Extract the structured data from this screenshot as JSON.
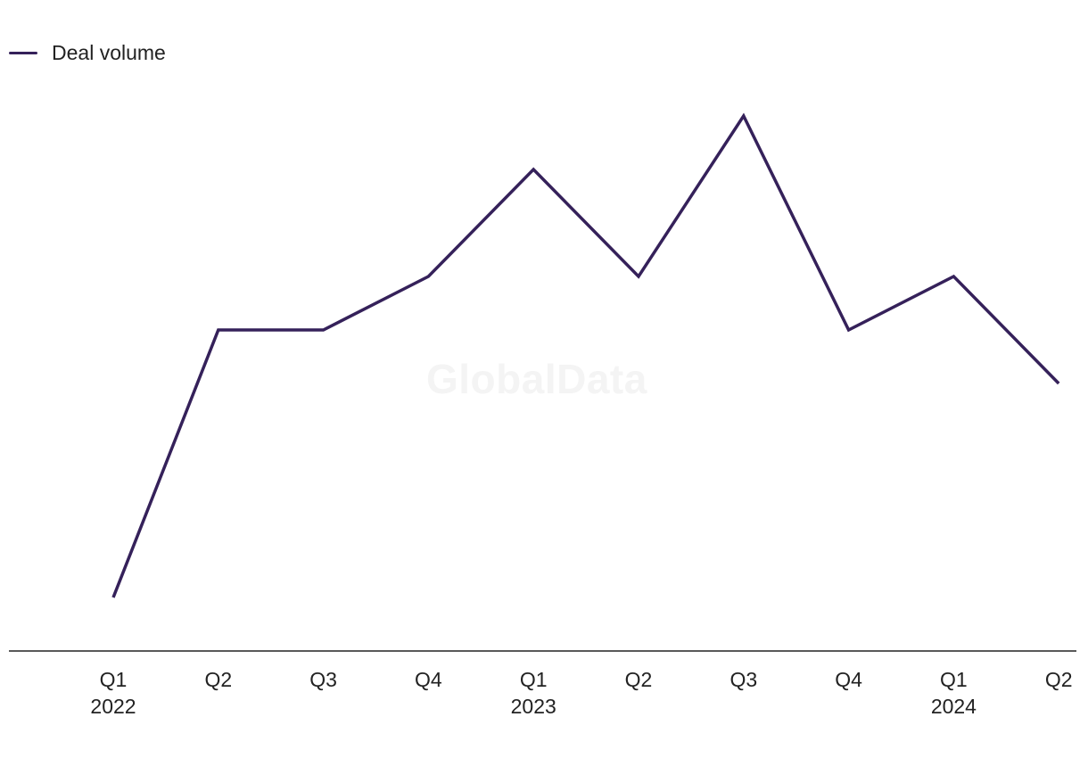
{
  "chart_data": {
    "type": "line",
    "categories": [
      "Q1 2022",
      "Q2 2022",
      "Q3 2022",
      "Q4 2022",
      "Q1 2023",
      "Q2 2023",
      "Q3 2023",
      "Q4 2023",
      "Q1 2024",
      "Q2 2024"
    ],
    "tick_labels": [
      {
        "quarter": "Q1",
        "year": "2022"
      },
      {
        "quarter": "Q2",
        "year": ""
      },
      {
        "quarter": "Q3",
        "year": ""
      },
      {
        "quarter": "Q4",
        "year": ""
      },
      {
        "quarter": "Q1",
        "year": "2023"
      },
      {
        "quarter": "Q2",
        "year": ""
      },
      {
        "quarter": "Q3",
        "year": ""
      },
      {
        "quarter": "Q4",
        "year": ""
      },
      {
        "quarter": "Q1",
        "year": "2024"
      },
      {
        "quarter": "Q2",
        "year": ""
      }
    ],
    "series": [
      {
        "name": "Deal volume",
        "color": "#35215a",
        "values": [
          1,
          6,
          6,
          7,
          9,
          7,
          10,
          6,
          7,
          5
        ]
      }
    ],
    "ylim": [
      0,
      12
    ],
    "grid": false,
    "legend_position": "top-left",
    "watermark": "GlobalData",
    "colors": {
      "line": "#35215a",
      "axis": "#222222",
      "text": "#222222",
      "watermark": "#f4f4f4"
    }
  }
}
